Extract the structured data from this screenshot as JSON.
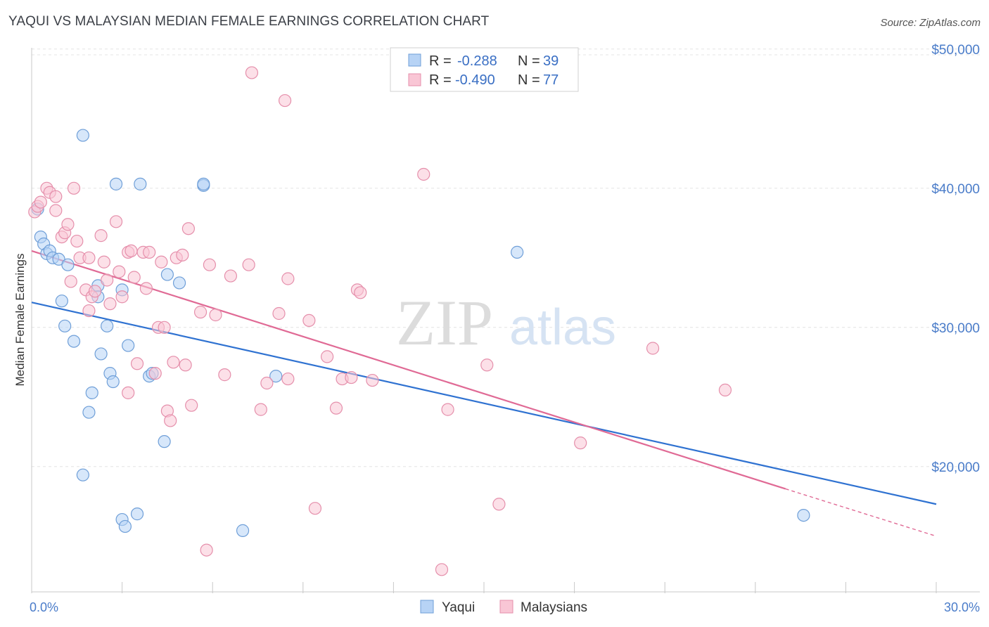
{
  "title": "YAQUI VS MALAYSIAN MEDIAN FEMALE EARNINGS CORRELATION CHART",
  "source": "Source: ZipAtlas.com",
  "watermark": {
    "zip": "ZIP",
    "atlas": "atlas"
  },
  "colors": {
    "yaqui_fill": "#b7d3f5",
    "yaqui_stroke": "#6f9fd8",
    "yaqui_line": "#2f72d1",
    "malay_fill": "#f9c6d5",
    "malay_stroke": "#e58fab",
    "malay_line": "#e06a95",
    "axis_label": "#4a7cc9"
  },
  "legend": {
    "rows": [
      {
        "r_label": "R =",
        "r_value": "-0.288",
        "n_label": "N =",
        "n_value": "39"
      },
      {
        "r_label": "R =",
        "r_value": "-0.490",
        "n_label": "N =",
        "n_value": "77"
      }
    ]
  },
  "bottom_legend": [
    "Yaqui",
    "Malaysians"
  ],
  "chart_data": {
    "type": "scatter",
    "title": "YAQUI VS MALAYSIAN MEDIAN FEMALE EARNINGS CORRELATION CHART",
    "xlabel": "",
    "ylabel": "Median Female Earnings",
    "xlim": [
      0,
      30
    ],
    "ylim": [
      11000,
      51000
    ],
    "x_tick_labels": [
      "0.0%",
      "30.0%"
    ],
    "y_ticks": [
      20000,
      30000,
      40000,
      50000
    ],
    "y_tick_labels": [
      "$20,000",
      "$30,000",
      "$40,000",
      "$50,000"
    ],
    "grid": true,
    "legend_position": "top-center",
    "series": [
      {
        "name": "Yaqui",
        "points": [
          [
            0.2,
            38500
          ],
          [
            0.3,
            36500
          ],
          [
            0.4,
            36000
          ],
          [
            0.5,
            35300
          ],
          [
            0.6,
            35500
          ],
          [
            0.7,
            35000
          ],
          [
            0.9,
            34900
          ],
          [
            1.2,
            34500
          ],
          [
            1.0,
            31900
          ],
          [
            1.1,
            30100
          ],
          [
            1.4,
            29000
          ],
          [
            1.7,
            43800
          ],
          [
            2.2,
            33000
          ],
          [
            2.2,
            32200
          ],
          [
            2.3,
            28100
          ],
          [
            2.5,
            30100
          ],
          [
            2.6,
            26700
          ],
          [
            2.7,
            26100
          ],
          [
            2.0,
            25300
          ],
          [
            1.9,
            23900
          ],
          [
            1.7,
            19400
          ],
          [
            2.8,
            40300
          ],
          [
            3.0,
            32700
          ],
          [
            3.2,
            28700
          ],
          [
            3.6,
            40300
          ],
          [
            3.9,
            26500
          ],
          [
            4.0,
            26700
          ],
          [
            4.4,
            21800
          ],
          [
            4.5,
            33800
          ],
          [
            4.9,
            33200
          ],
          [
            5.7,
            40200
          ],
          [
            5.7,
            40300
          ],
          [
            3.0,
            16200
          ],
          [
            3.1,
            15700
          ],
          [
            3.5,
            16600
          ],
          [
            7.0,
            15400
          ],
          [
            8.1,
            26500
          ],
          [
            16.1,
            35400
          ],
          [
            25.6,
            16500
          ]
        ]
      },
      {
        "name": "Malaysians",
        "points": [
          [
            0.1,
            38300
          ],
          [
            0.2,
            38700
          ],
          [
            0.3,
            39000
          ],
          [
            0.5,
            40000
          ],
          [
            0.6,
            39700
          ],
          [
            0.8,
            39400
          ],
          [
            0.8,
            38400
          ],
          [
            1.0,
            36500
          ],
          [
            1.1,
            36800
          ],
          [
            1.2,
            37400
          ],
          [
            1.3,
            33300
          ],
          [
            1.4,
            40000
          ],
          [
            1.5,
            36200
          ],
          [
            1.6,
            35000
          ],
          [
            1.8,
            32700
          ],
          [
            1.9,
            35000
          ],
          [
            1.9,
            31200
          ],
          [
            2.0,
            32200
          ],
          [
            2.1,
            32600
          ],
          [
            2.3,
            36600
          ],
          [
            2.4,
            34700
          ],
          [
            2.5,
            33400
          ],
          [
            2.6,
            31700
          ],
          [
            2.8,
            37600
          ],
          [
            2.9,
            34000
          ],
          [
            3.0,
            32200
          ],
          [
            3.2,
            35400
          ],
          [
            3.2,
            25300
          ],
          [
            3.3,
            35500
          ],
          [
            3.4,
            33600
          ],
          [
            3.5,
            27400
          ],
          [
            3.7,
            35400
          ],
          [
            3.8,
            32800
          ],
          [
            3.9,
            35400
          ],
          [
            4.1,
            26700
          ],
          [
            4.2,
            30000
          ],
          [
            4.3,
            34700
          ],
          [
            4.4,
            30000
          ],
          [
            4.5,
            24000
          ],
          [
            4.6,
            23300
          ],
          [
            4.7,
            27500
          ],
          [
            4.8,
            35000
          ],
          [
            5.0,
            35200
          ],
          [
            5.1,
            27300
          ],
          [
            5.2,
            37100
          ],
          [
            5.3,
            24400
          ],
          [
            5.6,
            31100
          ],
          [
            5.8,
            14000
          ],
          [
            5.9,
            34500
          ],
          [
            6.1,
            30900
          ],
          [
            6.4,
            26600
          ],
          [
            6.6,
            33700
          ],
          [
            7.2,
            34500
          ],
          [
            7.3,
            48300
          ],
          [
            7.6,
            24100
          ],
          [
            7.8,
            26000
          ],
          [
            8.2,
            31000
          ],
          [
            8.4,
            46300
          ],
          [
            8.5,
            33500
          ],
          [
            8.5,
            26300
          ],
          [
            9.2,
            30500
          ],
          [
            9.4,
            17000
          ],
          [
            9.8,
            27900
          ],
          [
            10.1,
            24200
          ],
          [
            10.3,
            26300
          ],
          [
            10.6,
            26400
          ],
          [
            10.8,
            32700
          ],
          [
            10.9,
            32500
          ],
          [
            11.3,
            26200
          ],
          [
            13.0,
            41000
          ],
          [
            13.6,
            12600
          ],
          [
            13.8,
            24100
          ],
          [
            15.1,
            27300
          ],
          [
            15.5,
            17300
          ],
          [
            18.2,
            21700
          ],
          [
            20.6,
            28500
          ],
          [
            23.0,
            25500
          ]
        ]
      }
    ],
    "trendlines": [
      {
        "name": "Yaqui",
        "x": [
          0,
          30
        ],
        "y": [
          31800,
          17300
        ]
      },
      {
        "name": "Malaysians",
        "x": [
          0,
          25
        ],
        "y": [
          35500,
          18400
        ],
        "dashed_extension": {
          "x": [
            25,
            30
          ],
          "y": [
            18400,
            15000
          ]
        }
      }
    ]
  }
}
